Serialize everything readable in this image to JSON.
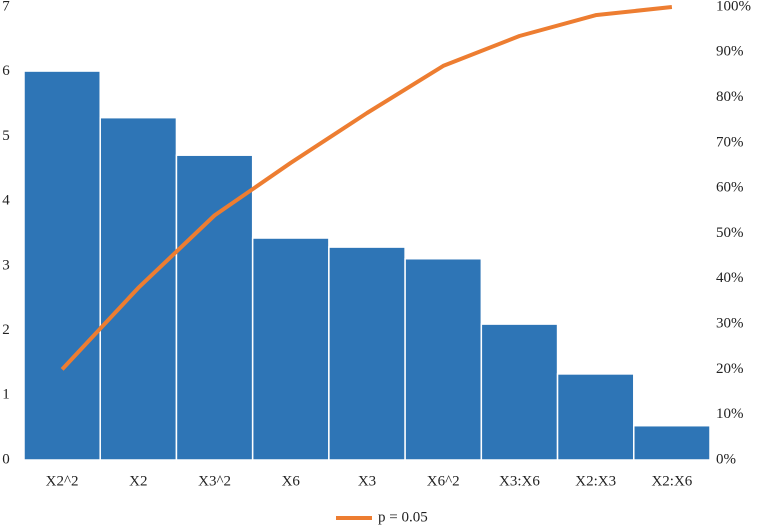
{
  "chart_data": {
    "type": "pareto",
    "categories": [
      "X2^2",
      "X2",
      "X3^2",
      "X6",
      "X3",
      "X6^2",
      "X3:X6",
      "X2:X3",
      "X2:X6"
    ],
    "series": [
      {
        "color": "#2e75b6",
        "values": [
          6.01,
          5.29,
          4.71,
          3.43,
          3.29,
          3.11,
          2.1,
          1.33,
          0.53
        ]
      },
      {
        "name": "p = 0.05",
        "color": "#ed7d31",
        "axis": "y2",
        "values": [
          20,
          38,
          54,
          65.6,
          76.6,
          87,
          93.6,
          98.2,
          100
        ]
      }
    ],
    "ylim": [
      0,
      7
    ],
    "yticks": [
      0,
      1,
      2,
      3,
      4,
      5,
      6,
      7
    ],
    "y2lim": [
      0,
      100
    ],
    "y2ticks": [
      {
        "value": 0,
        "label": "0%"
      },
      {
        "value": 10,
        "label": "10%"
      },
      {
        "value": 20,
        "label": "20%"
      },
      {
        "value": 30,
        "label": "30%"
      },
      {
        "value": 40,
        "label": "40%"
      },
      {
        "value": 50,
        "label": "50%"
      },
      {
        "value": 60,
        "label": "60%"
      },
      {
        "value": 70,
        "label": "70%"
      },
      {
        "value": 80,
        "label": "80%"
      },
      {
        "value": 90,
        "label": "90%"
      },
      {
        "value": 100,
        "label": "100%"
      }
    ],
    "legend": "bottom"
  }
}
